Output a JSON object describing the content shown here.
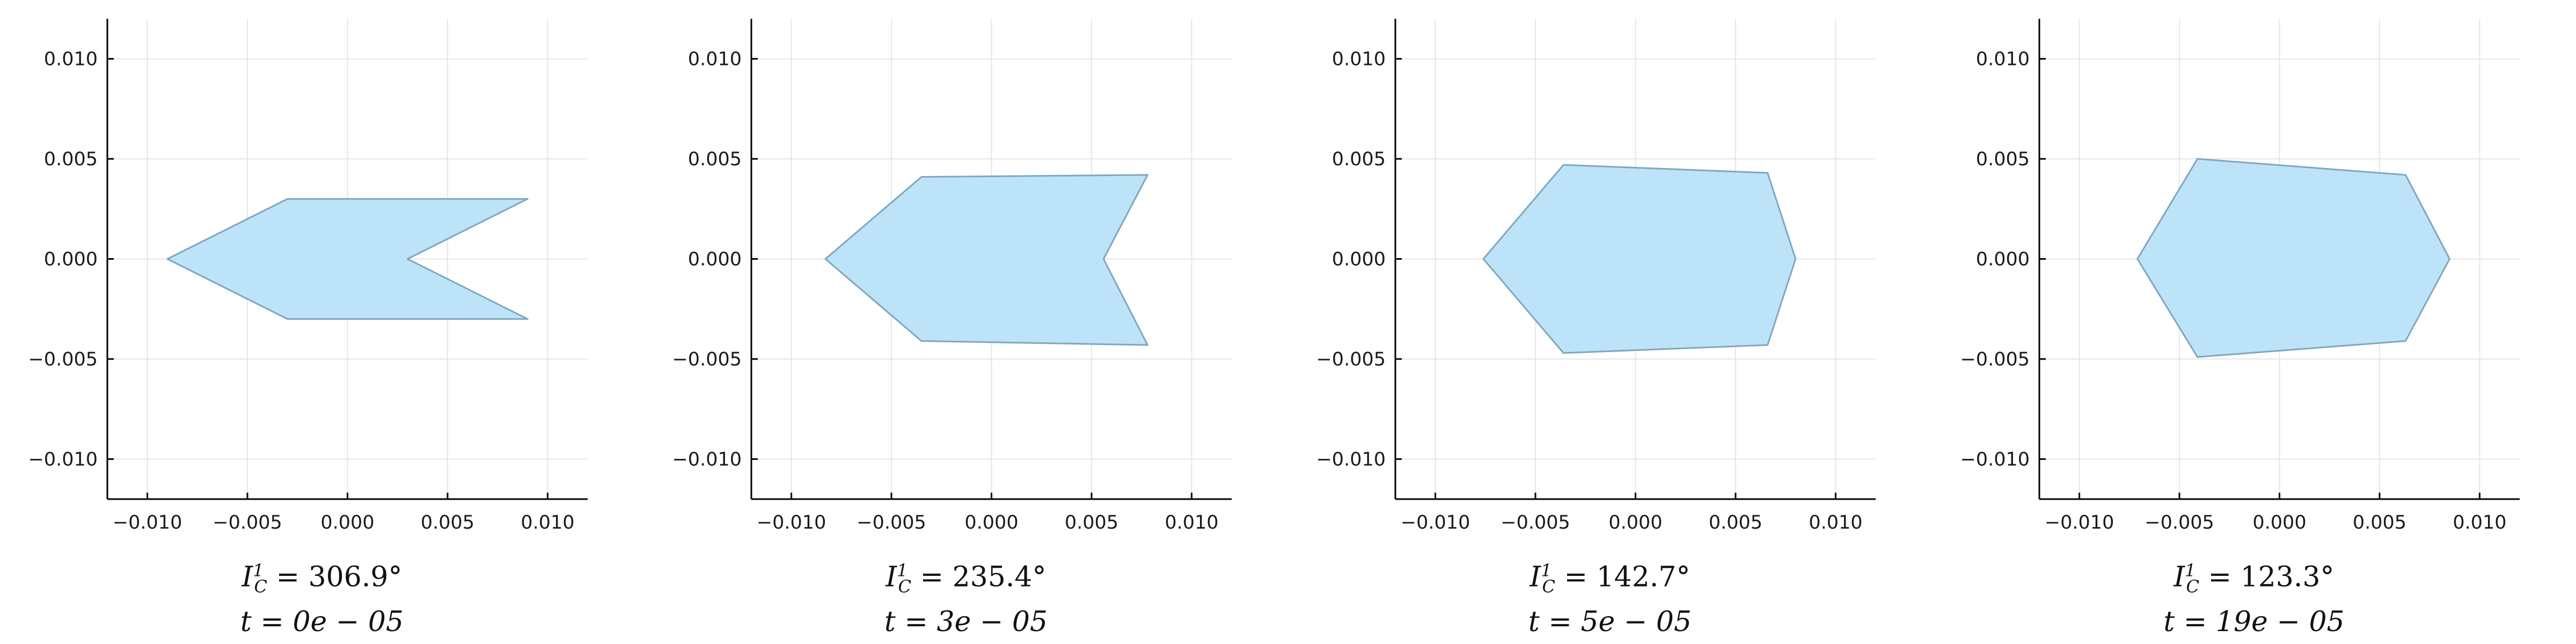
{
  "chart_data": [
    {
      "type": "area",
      "xlim": [
        -0.012,
        0.012
      ],
      "ylim": [
        -0.012,
        0.012
      ],
      "xticks": [
        -0.01,
        -0.005,
        0.0,
        0.005,
        0.01
      ],
      "yticks": [
        -0.01,
        -0.005,
        0.0,
        0.005,
        0.01
      ],
      "xtick_labels": [
        "−0.010",
        "−0.005",
        "0.000",
        "0.005",
        "0.010"
      ],
      "ytick_labels": [
        "−0.010",
        "−0.005",
        "0.000",
        "0.005",
        "0.010"
      ],
      "grid": true,
      "fill_color": "#bde3f8",
      "edge_color": "#7fa6bf",
      "polygon": [
        [
          -0.009,
          0.0
        ],
        [
          -0.003,
          0.003
        ],
        [
          0.009,
          0.003
        ],
        [
          0.003,
          0.0
        ],
        [
          0.009,
          -0.003
        ],
        [
          -0.003,
          -0.003
        ]
      ],
      "angle_label": "306.9°",
      "time_label": "0e − 05"
    },
    {
      "type": "area",
      "xlim": [
        -0.012,
        0.012
      ],
      "ylim": [
        -0.012,
        0.012
      ],
      "xticks": [
        -0.01,
        -0.005,
        0.0,
        0.005,
        0.01
      ],
      "yticks": [
        -0.01,
        -0.005,
        0.0,
        0.005,
        0.01
      ],
      "xtick_labels": [
        "−0.010",
        "−0.005",
        "0.000",
        "0.005",
        "0.010"
      ],
      "ytick_labels": [
        "−0.010",
        "−0.005",
        "0.000",
        "0.005",
        "0.010"
      ],
      "grid": true,
      "fill_color": "#bde3f8",
      "edge_color": "#7fa6bf",
      "polygon": [
        [
          -0.0083,
          0.0
        ],
        [
          -0.0035,
          0.0041
        ],
        [
          0.0078,
          0.0042
        ],
        [
          0.0056,
          0.0
        ],
        [
          0.0078,
          -0.0043
        ],
        [
          -0.0035,
          -0.0041
        ]
      ],
      "angle_label": "235.4°",
      "time_label": "3e − 05"
    },
    {
      "type": "area",
      "xlim": [
        -0.012,
        0.012
      ],
      "ylim": [
        -0.012,
        0.012
      ],
      "xticks": [
        -0.01,
        -0.005,
        0.0,
        0.005,
        0.01
      ],
      "yticks": [
        -0.01,
        -0.005,
        0.0,
        0.005,
        0.01
      ],
      "xtick_labels": [
        "−0.010",
        "−0.005",
        "0.000",
        "0.005",
        "0.010"
      ],
      "ytick_labels": [
        "−0.010",
        "−0.005",
        "0.000",
        "0.005",
        "0.010"
      ],
      "grid": true,
      "fill_color": "#bde3f8",
      "edge_color": "#7fa6bf",
      "polygon": [
        [
          -0.0076,
          0.0
        ],
        [
          -0.0036,
          0.0047
        ],
        [
          0.0066,
          0.0043
        ],
        [
          0.008,
          0.0
        ],
        [
          0.0066,
          -0.0043
        ],
        [
          -0.0036,
          -0.0047
        ]
      ],
      "angle_label": "142.7°",
      "time_label": "5e − 05"
    },
    {
      "type": "area",
      "xlim": [
        -0.012,
        0.012
      ],
      "ylim": [
        -0.012,
        0.012
      ],
      "xticks": [
        -0.01,
        -0.005,
        0.0,
        0.005,
        0.01
      ],
      "yticks": [
        -0.01,
        -0.005,
        0.0,
        0.005,
        0.01
      ],
      "xtick_labels": [
        "−0.010",
        "−0.005",
        "0.000",
        "0.005",
        "0.010"
      ],
      "ytick_labels": [
        "−0.010",
        "−0.005",
        "0.000",
        "0.005",
        "0.010"
      ],
      "grid": true,
      "fill_color": "#bde3f8",
      "edge_color": "#7fa6bf",
      "polygon": [
        [
          -0.0071,
          0.0
        ],
        [
          -0.0041,
          0.005
        ],
        [
          0.0063,
          0.0042
        ],
        [
          0.0085,
          0.0
        ],
        [
          0.0063,
          -0.0041
        ],
        [
          -0.0041,
          -0.0049
        ]
      ],
      "angle_label": "123.3°",
      "time_label": "19e − 05"
    }
  ]
}
